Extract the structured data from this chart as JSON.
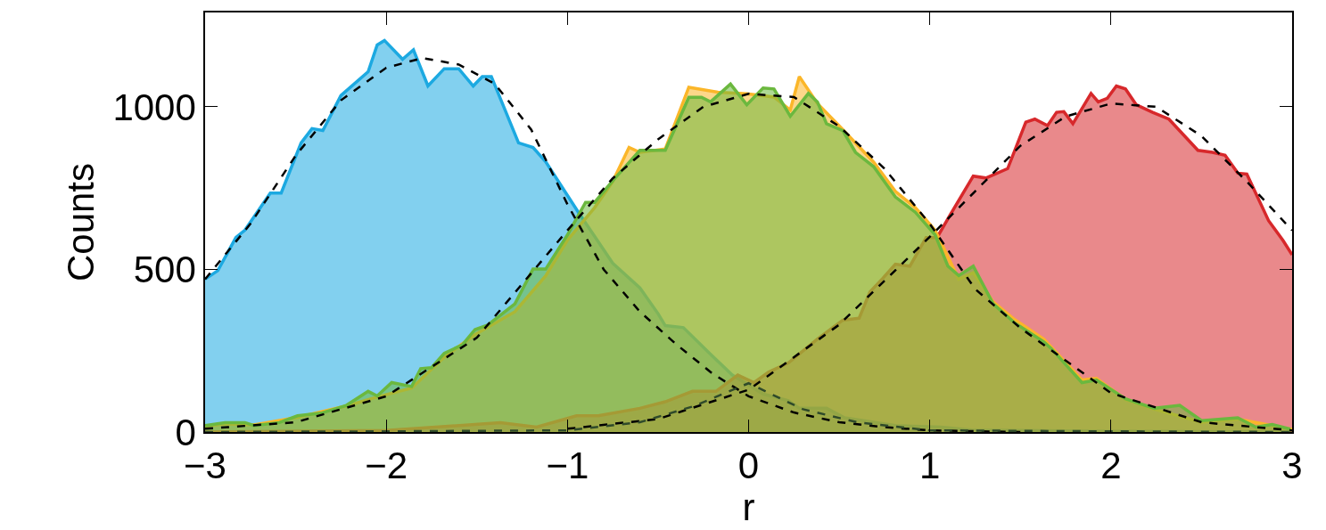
{
  "chart_data": {
    "type": "area",
    "xlabel": "r",
    "ylabel": "Counts",
    "xlim": [
      -3,
      3
    ],
    "xticks": [
      {
        "value": -3,
        "label": "−3"
      },
      {
        "value": -2,
        "label": "−2"
      },
      {
        "value": -1,
        "label": "−1"
      },
      0,
      1,
      2,
      3
    ],
    "ylim": [
      0,
      1290
    ],
    "yticks": [
      0,
      500,
      1000
    ],
    "series": [
      {
        "color": "#1ca9e1",
        "x": [
          -3,
          -2.93,
          -2.83,
          -2.78,
          -2.64,
          -2.58,
          -2.47,
          -2.41,
          -2.35,
          -2.25,
          -2.1,
          -2.05,
          -2.01,
          -1.91,
          -1.85,
          -1.77,
          -1.68,
          -1.6,
          -1.52,
          -1.47,
          -1.42,
          -1.27,
          -1.19,
          -1.12,
          -0.94,
          -0.75,
          -0.6,
          -0.5,
          -0.46,
          -0.36,
          -0.21,
          -0.09,
          0.08,
          0.22,
          0.28,
          0.43,
          0.53,
          0.81,
          1.06,
          1.23,
          2.0,
          3.0
        ],
        "values": [
          470,
          496,
          598,
          621,
          735,
          735,
          889,
          933,
          927,
          1035,
          1108,
          1190,
          1204,
          1146,
          1175,
          1064,
          1117,
          1117,
          1064,
          1093,
          1093,
          889,
          875,
          831,
          676,
          519,
          443,
          364,
          327,
          321,
          239,
          175,
          117,
          96,
          73,
          73,
          44,
          20,
          15,
          6,
          2,
          0
        ]
      },
      {
        "color": "#fbb629",
        "x": [
          -3,
          -2.89,
          -2.73,
          -2.49,
          -2.22,
          -2.05,
          -1.86,
          -1.68,
          -1.51,
          -1.29,
          -1.12,
          -1.0,
          -0.85,
          -0.75,
          -0.66,
          -0.6,
          -0.46,
          -0.33,
          -0.17,
          -0.01,
          0.14,
          0.23,
          0.28,
          0.38,
          0.52,
          0.69,
          0.81,
          0.92,
          1.03,
          1.16,
          1.24,
          1.35,
          1.47,
          1.63,
          1.84,
          1.92,
          2.08,
          2.24,
          2.5,
          2.7,
          2.89,
          3.0
        ],
        "values": [
          18,
          25,
          22,
          45,
          80,
          108,
          135,
          230,
          300,
          370,
          480,
          590,
          690,
          770,
          875,
          860,
          870,
          1060,
          1045,
          1040,
          1030,
          990,
          1093,
          1010,
          930,
          830,
          740,
          690,
          620,
          470,
          490,
          400,
          345,
          285,
          160,
          165,
          100,
          70,
          30,
          40,
          20,
          8
        ]
      },
      {
        "color": "#6bb83e",
        "x": [
          -3,
          -2.89,
          -2.78,
          -2.73,
          -2.59,
          -2.49,
          -2.36,
          -2.22,
          -2.1,
          -2.05,
          -1.97,
          -1.86,
          -1.81,
          -1.75,
          -1.68,
          -1.58,
          -1.51,
          -1.44,
          -1.29,
          -1.19,
          -1.12,
          -1.0,
          -0.9,
          -0.85,
          -0.75,
          -0.6,
          -0.46,
          -0.33,
          -0.26,
          -0.21,
          -0.1,
          -0.01,
          0.08,
          0.14,
          0.23,
          0.33,
          0.38,
          0.43,
          0.52,
          0.59,
          0.69,
          0.81,
          0.92,
          1.03,
          1.1,
          1.16,
          1.24,
          1.35,
          1.47,
          1.63,
          1.67,
          1.84,
          1.92,
          2.08,
          2.24,
          2.38,
          2.5,
          2.7,
          2.8,
          2.89,
          2.99
        ],
        "values": [
          20,
          29,
          29,
          20,
          29,
          50,
          58,
          82,
          125,
          111,
          152,
          140,
          195,
          198,
          242,
          268,
          315,
          329,
          394,
          501,
          501,
          606,
          706,
          706,
          773,
          866,
          866,
          1029,
          1029,
          1015,
          1070,
          1006,
          1058,
          1055,
          971,
          1041,
          1015,
          948,
          927,
          860,
          816,
          723,
          676,
          606,
          510,
          481,
          510,
          394,
          335,
          277,
          257,
          152,
          160,
          102,
          73,
          82,
          35,
          44,
          15,
          23,
          9
        ]
      },
      {
        "color": "#d7282b",
        "x": [
          -3,
          -2.0,
          -1.51,
          -1.37,
          -1.17,
          -0.95,
          -0.83,
          -0.6,
          -0.46,
          -0.31,
          -0.18,
          -0.06,
          0.03,
          0.11,
          0.22,
          0.38,
          0.52,
          0.61,
          0.67,
          0.74,
          0.81,
          0.89,
          0.98,
          1.04,
          1.11,
          1.24,
          1.31,
          1.43,
          1.53,
          1.58,
          1.65,
          1.7,
          1.74,
          1.79,
          1.89,
          1.93,
          1.98,
          2.03,
          2.08,
          2.14,
          2.23,
          2.32,
          2.48,
          2.56,
          2.63,
          2.7,
          2.75,
          2.87,
          2.95,
          3.0
        ],
        "values": [
          0,
          5,
          23,
          29,
          15,
          50,
          50,
          73,
          93,
          125,
          125,
          175,
          152,
          184,
          213,
          286,
          344,
          350,
          431,
          472,
          516,
          510,
          598,
          598,
          665,
          787,
          781,
          810,
          953,
          962,
          942,
          983,
          985,
          948,
          1041,
          1015,
          1026,
          1064,
          1055,
          1006,
          983,
          962,
          866,
          860,
          851,
          796,
          793,
          650,
          589,
          545
        ]
      },
      {
        "type": "line",
        "color": "#000000",
        "line_style": "dashed",
        "x": [
          -3,
          -2.75,
          -2.5,
          -2.25,
          -2.0,
          -1.8,
          -1.6,
          -1.4,
          -1.2,
          -1.0,
          -0.8,
          -0.6,
          -0.4,
          -0.2,
          0,
          0.25,
          0.5,
          0.75,
          1.0,
          1.5
        ],
        "values": [
          470,
          640,
          850,
          1020,
          1120,
          1150,
          1130,
          1070,
          930,
          700,
          500,
          370,
          270,
          180,
          110,
          60,
          30,
          15,
          5,
          0
        ]
      },
      {
        "type": "line",
        "color": "#000000",
        "line_style": "dashed",
        "x": [
          -3,
          -2.5,
          -2.0,
          -1.5,
          -1.0,
          -0.75,
          -0.5,
          -0.25,
          0,
          0.25,
          0.5,
          0.75,
          1.0,
          1.25,
          1.5,
          2.0,
          2.5,
          3.0
        ],
        "values": [
          10,
          30,
          110,
          290,
          620,
          780,
          900,
          1000,
          1040,
          1030,
          940,
          810,
          640,
          440,
          320,
          120,
          30,
          5
        ]
      },
      {
        "type": "line",
        "color": "#000000",
        "line_style": "dashed",
        "x": [
          -1.0,
          -0.5,
          0,
          0.5,
          1.0,
          1.25,
          1.5,
          1.75,
          2.0,
          2.25,
          2.5,
          2.75,
          3.0
        ],
        "values": [
          10,
          40,
          130,
          330,
          600,
          740,
          880,
          970,
          1010,
          1000,
          910,
          770,
          620
        ]
      },
      {
        "type": "line",
        "color": "#2f4a2a",
        "line_style": "dashed",
        "x": [
          -3,
          -2.0,
          -1.0,
          -0.6,
          -0.3,
          0,
          0.3,
          0.6,
          1.0,
          2.0,
          3.0
        ],
        "values": [
          0,
          2,
          5,
          30,
          80,
          150,
          70,
          30,
          5,
          2,
          0
        ]
      }
    ]
  }
}
